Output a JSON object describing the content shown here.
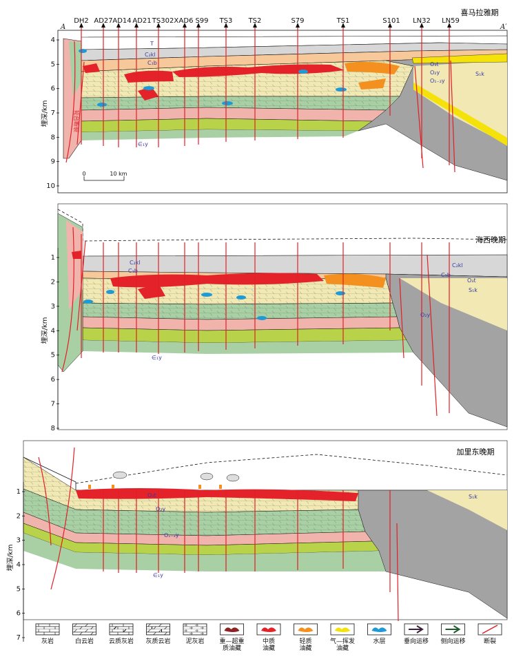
{
  "colors": {
    "green": "#a9cfa5",
    "yellow": "#f1e8b4",
    "pink": "#f0b4ad",
    "lime": "#b8d24a",
    "gray": "#d7d7d7",
    "darkgray": "#a3a3a3",
    "ochre": "#f6c89a",
    "red": "#e3222a",
    "orange": "#f39020",
    "blue": "#1e9bd7",
    "gold": "#f4e20a",
    "fault": "#e21e26",
    "dark": "#111",
    "label_blue": "#3a3aa0"
  },
  "section": {
    "start": "A",
    "end": "A′"
  },
  "wells": [
    {
      "name": "DH2"
    },
    {
      "name": "AD27"
    },
    {
      "name": "AD14"
    },
    {
      "name": "AD21"
    },
    {
      "name": "TS302X"
    },
    {
      "name": "AD6"
    },
    {
      "name": "S99"
    },
    {
      "name": "TS3"
    },
    {
      "name": "TS2"
    },
    {
      "name": "S79"
    },
    {
      "name": "TS1"
    },
    {
      "name": "S101"
    },
    {
      "name": "LN32"
    },
    {
      "name": "LN59"
    }
  ],
  "depth_axis_label": "埋深/km",
  "panels": [
    {
      "name": "喜马拉雅期",
      "depth_ticks": [
        "4",
        "5",
        "6",
        "7",
        "8",
        "9",
        "10"
      ],
      "labels": {
        "T": "T",
        "C2kl": "C₂kl",
        "C1b": "C₁b",
        "O3t": "O₃t",
        "O2y": "O₂y",
        "O12y": "O₁₋₂y",
        "S1k": "S₁k",
        "Cy": "∈₁y",
        "fault_note": "轮台断裂"
      },
      "scale_bar": {
        "start": "0",
        "end": "10 km"
      }
    },
    {
      "name": "海西晚期",
      "depth_ticks": [
        "1",
        "2",
        "3",
        "4",
        "5",
        "6",
        "7",
        "8"
      ],
      "labels": {
        "C2kl": "C₂kl",
        "C1b": "C₁b",
        "O3t": "O₃t",
        "O2y": "O₂y",
        "S1k": "S₁k",
        "Cy": "∈₁y"
      }
    },
    {
      "name": "加里东晚期",
      "depth_ticks": [
        "1",
        "2",
        "3",
        "4",
        "5",
        "6",
        "7"
      ],
      "labels": {
        "O3t": "O₃t",
        "O2y": "O₂y",
        "O12y": "O₁₋₂y",
        "S1k": "S₁k",
        "Cy": "∈₁y"
      }
    }
  ],
  "legend": [
    {
      "id": "limestone",
      "label": [
        "灰岩"
      ]
    },
    {
      "id": "dolomite",
      "label": [
        "白云岩"
      ]
    },
    {
      "id": "dolomitic-limestone",
      "label": [
        "云质灰岩"
      ]
    },
    {
      "id": "limy-dolomite",
      "label": [
        "灰质云岩"
      ]
    },
    {
      "id": "marl",
      "label": [
        "泥灰岩"
      ]
    },
    {
      "id": "heavy-oil",
      "label": [
        "重—超重",
        "质油藏"
      ]
    },
    {
      "id": "medium-oil",
      "label": [
        "中质",
        "油藏"
      ]
    },
    {
      "id": "light-oil",
      "label": [
        "轻质",
        "油藏"
      ]
    },
    {
      "id": "gas-volatile",
      "label": [
        "气—挥发",
        "油藏"
      ]
    },
    {
      "id": "water-layer",
      "label": [
        "水层"
      ]
    },
    {
      "id": "vertical-migration",
      "label": [
        "垂向运移"
      ]
    },
    {
      "id": "lateral-migration",
      "label": [
        "侧向运移"
      ]
    },
    {
      "id": "fault",
      "label": [
        "断裂"
      ]
    }
  ]
}
